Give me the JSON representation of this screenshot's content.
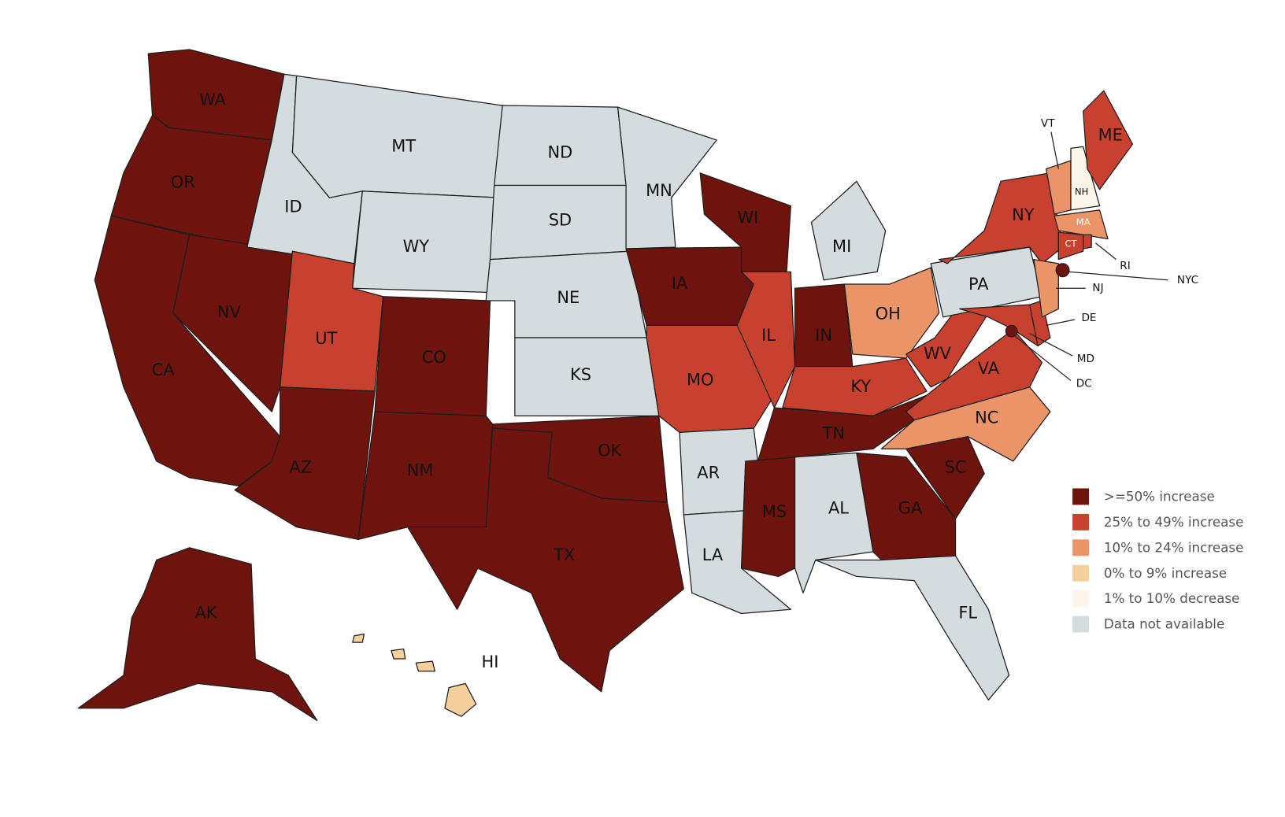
{
  "legend": [
    {
      "label": ">=50% increase",
      "color": "#6e130d"
    },
    {
      "label": "25% to 49% increase",
      "color": "#c8412e"
    },
    {
      "label": "10% to 24% increase",
      "color": "#eb9467"
    },
    {
      "label": "0% to 9% increase",
      "color": "#f5d09d"
    },
    {
      "label": "1% to 10% decrease",
      "color": "#fbf5ea"
    },
    {
      "label": "Data not available",
      "color": "#d5dce0"
    }
  ],
  "states": [
    {
      "label": "WA",
      "category": 0
    },
    {
      "label": "OR",
      "category": 0
    },
    {
      "label": "CA",
      "category": 0
    },
    {
      "label": "NV",
      "category": 0
    },
    {
      "label": "ID",
      "category": 5
    },
    {
      "label": "MT",
      "category": 5
    },
    {
      "label": "WY",
      "category": 5
    },
    {
      "label": "UT",
      "category": 1
    },
    {
      "label": "CO",
      "category": 0
    },
    {
      "label": "AZ",
      "category": 0
    },
    {
      "label": "NM",
      "category": 0
    },
    {
      "label": "ND",
      "category": 5
    },
    {
      "label": "SD",
      "category": 5
    },
    {
      "label": "NE",
      "category": 5
    },
    {
      "label": "KS",
      "category": 5
    },
    {
      "label": "OK",
      "category": 0
    },
    {
      "label": "TX",
      "category": 0
    },
    {
      "label": "MN",
      "category": 5
    },
    {
      "label": "IA",
      "category": 0
    },
    {
      "label": "MO",
      "category": 1
    },
    {
      "label": "AR",
      "category": 5
    },
    {
      "label": "LA",
      "category": 5
    },
    {
      "label": "WI",
      "category": 0
    },
    {
      "label": "IL",
      "category": 1
    },
    {
      "label": "IN",
      "category": 0
    },
    {
      "label": "MI",
      "category": 5
    },
    {
      "label": "OH",
      "category": 2
    },
    {
      "label": "KY",
      "category": 1
    },
    {
      "label": "TN",
      "category": 0
    },
    {
      "label": "MS",
      "category": 0
    },
    {
      "label": "AL",
      "category": 5
    },
    {
      "label": "GA",
      "category": 0
    },
    {
      "label": "FL",
      "category": 5
    },
    {
      "label": "SC",
      "category": 0
    },
    {
      "label": "NC",
      "category": 2
    },
    {
      "label": "VA",
      "category": 1
    },
    {
      "label": "WV",
      "category": 1
    },
    {
      "label": "PA",
      "category": 5
    },
    {
      "label": "NY",
      "category": 1
    },
    {
      "label": "MD",
      "category": 1
    },
    {
      "label": "DE",
      "category": 1
    },
    {
      "label": "NJ",
      "category": 2
    },
    {
      "label": "VT",
      "category": 2
    },
    {
      "label": "NH",
      "category": 4
    },
    {
      "label": "ME",
      "category": 1
    },
    {
      "label": "MA",
      "category": 2
    },
    {
      "label": "CT",
      "category": 1
    },
    {
      "label": "RI",
      "category": 1
    },
    {
      "label": "AK",
      "category": 0
    },
    {
      "label": "HI",
      "category": 3
    },
    {
      "label": "NYC",
      "category": 0
    },
    {
      "label": "DC",
      "category": 0
    }
  ]
}
